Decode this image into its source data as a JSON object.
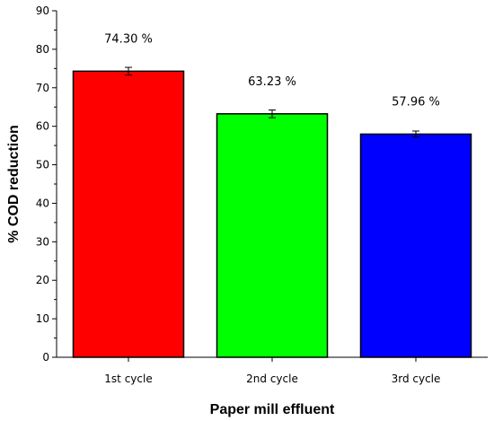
{
  "chart_data": {
    "type": "bar",
    "categories": [
      "1st cycle",
      "2nd cycle",
      "3rd cycle"
    ],
    "values": [
      74.3,
      63.23,
      57.96
    ],
    "errors": [
      1.0,
      1.0,
      0.8
    ],
    "data_labels": [
      "74.30 %",
      "63.23 %",
      "57.96 %"
    ],
    "colors": [
      "#ff0000",
      "#00ff00",
      "#0000ff"
    ],
    "title": "",
    "xlabel": "Paper mill effluent",
    "ylabel": "% COD reduction",
    "ylim": [
      0,
      90
    ],
    "yticks": [
      0,
      10,
      20,
      30,
      40,
      50,
      60,
      70,
      80,
      90
    ],
    "grid": false,
    "legend": "none"
  }
}
